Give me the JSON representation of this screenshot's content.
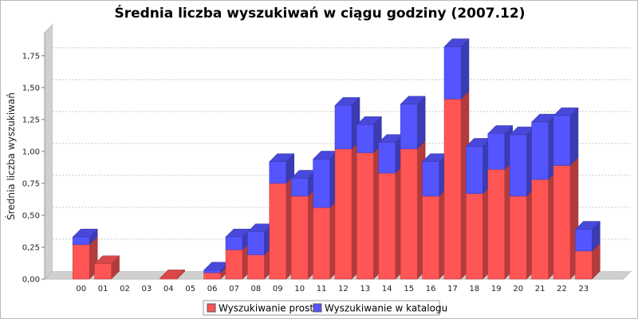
{
  "chart_data": {
    "type": "bar",
    "stacked": true,
    "style": "3d",
    "title": "Średnia liczba wyszukiwań w ciągu godziny (2007.12)",
    "xlabel": "",
    "ylabel": "Średnia liczba wyszukiwań",
    "ylim": [
      0,
      1.93
    ],
    "yticks": [
      "0,00",
      "0,25",
      "0,50",
      "0,75",
      "1,00",
      "1,25",
      "1,50",
      "1,75"
    ],
    "ytick_values": [
      0,
      0.25,
      0.5,
      0.75,
      1.0,
      1.25,
      1.5,
      1.75
    ],
    "grid": true,
    "legend_position": "bottom",
    "categories": [
      "00",
      "01",
      "02",
      "03",
      "04",
      "05",
      "06",
      "07",
      "08",
      "09",
      "10",
      "11",
      "12",
      "13",
      "14",
      "15",
      "16",
      "17",
      "18",
      "19",
      "20",
      "21",
      "22",
      "23"
    ],
    "series": [
      {
        "name": "Wyszukiwanie proste",
        "color": "#ff5555",
        "values": [
          0.27,
          0.12,
          0,
          0,
          0.01,
          0,
          0.05,
          0.23,
          0.19,
          0.75,
          0.65,
          0.56,
          1.02,
          0.99,
          0.83,
          1.02,
          0.65,
          1.41,
          0.67,
          0.86,
          0.65,
          0.78,
          0.89,
          0.22
        ]
      },
      {
        "name": "Wyszukiwanie w katalogu",
        "color": "#5555ff",
        "values": [
          0.06,
          0,
          0,
          0,
          0,
          0,
          0.02,
          0.1,
          0.18,
          0.17,
          0.14,
          0.38,
          0.34,
          0.22,
          0.24,
          0.35,
          0.27,
          0.41,
          0.37,
          0.28,
          0.48,
          0.45,
          0.39,
          0.17
        ]
      }
    ]
  }
}
